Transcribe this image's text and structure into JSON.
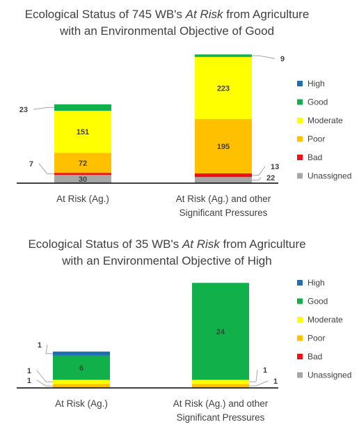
{
  "status_colors": {
    "High": "#1f6fb4",
    "Good": "#12b04b",
    "Moderate": "#ffff00",
    "Poor": "#ffc000",
    "Bad": "#ee1111",
    "Unassigned": "#a6a6a6"
  },
  "chart_data": [
    {
      "type": "bar",
      "stacked": true,
      "title_lines": [
        [
          "Ecological Status of 745 WB's ",
          "At Risk",
          " from Agriculture"
        ],
        [
          "with an Environmental Objective of Good"
        ]
      ],
      "categories": [
        [
          "At Risk (Ag.)"
        ],
        [
          "At Risk (Ag.) and other",
          "Significant Pressures"
        ]
      ],
      "series": [
        {
          "name": "Unassigned",
          "values": [
            30,
            22
          ]
        },
        {
          "name": "Bad",
          "values": [
            7,
            13
          ]
        },
        {
          "name": "Poor",
          "values": [
            72,
            195
          ]
        },
        {
          "name": "Moderate",
          "values": [
            151,
            223
          ]
        },
        {
          "name": "Good",
          "values": [
            23,
            9
          ]
        },
        {
          "name": "High",
          "values": [
            0,
            0
          ]
        }
      ],
      "legend_order": [
        "High",
        "Good",
        "Moderate",
        "Poor",
        "Bad",
        "Unassigned"
      ],
      "legend_position": "right",
      "ylim": [
        0,
        470
      ],
      "grid": false
    },
    {
      "type": "bar",
      "stacked": true,
      "title_lines": [
        [
          "Ecological Status of 35 WB's ",
          "At Risk",
          " from Agriculture"
        ],
        [
          "with an Environmental Objective of High"
        ]
      ],
      "categories": [
        [
          "At Risk (Ag.)"
        ],
        [
          "At Risk (Ag.) and other",
          "Significant Pressures"
        ]
      ],
      "series": [
        {
          "name": "Unassigned",
          "values": [
            0,
            0
          ]
        },
        {
          "name": "Bad",
          "values": [
            0,
            0
          ]
        },
        {
          "name": "Poor",
          "values": [
            1,
            1
          ]
        },
        {
          "name": "Moderate",
          "values": [
            1,
            1
          ]
        },
        {
          "name": "Good",
          "values": [
            6,
            24
          ]
        },
        {
          "name": "High",
          "values": [
            1,
            0
          ]
        }
      ],
      "legend_order": [
        "High",
        "Good",
        "Moderate",
        "Poor",
        "Bad",
        "Unassigned"
      ],
      "legend_position": "right",
      "ylim": [
        0,
        26
      ],
      "grid": false
    }
  ]
}
